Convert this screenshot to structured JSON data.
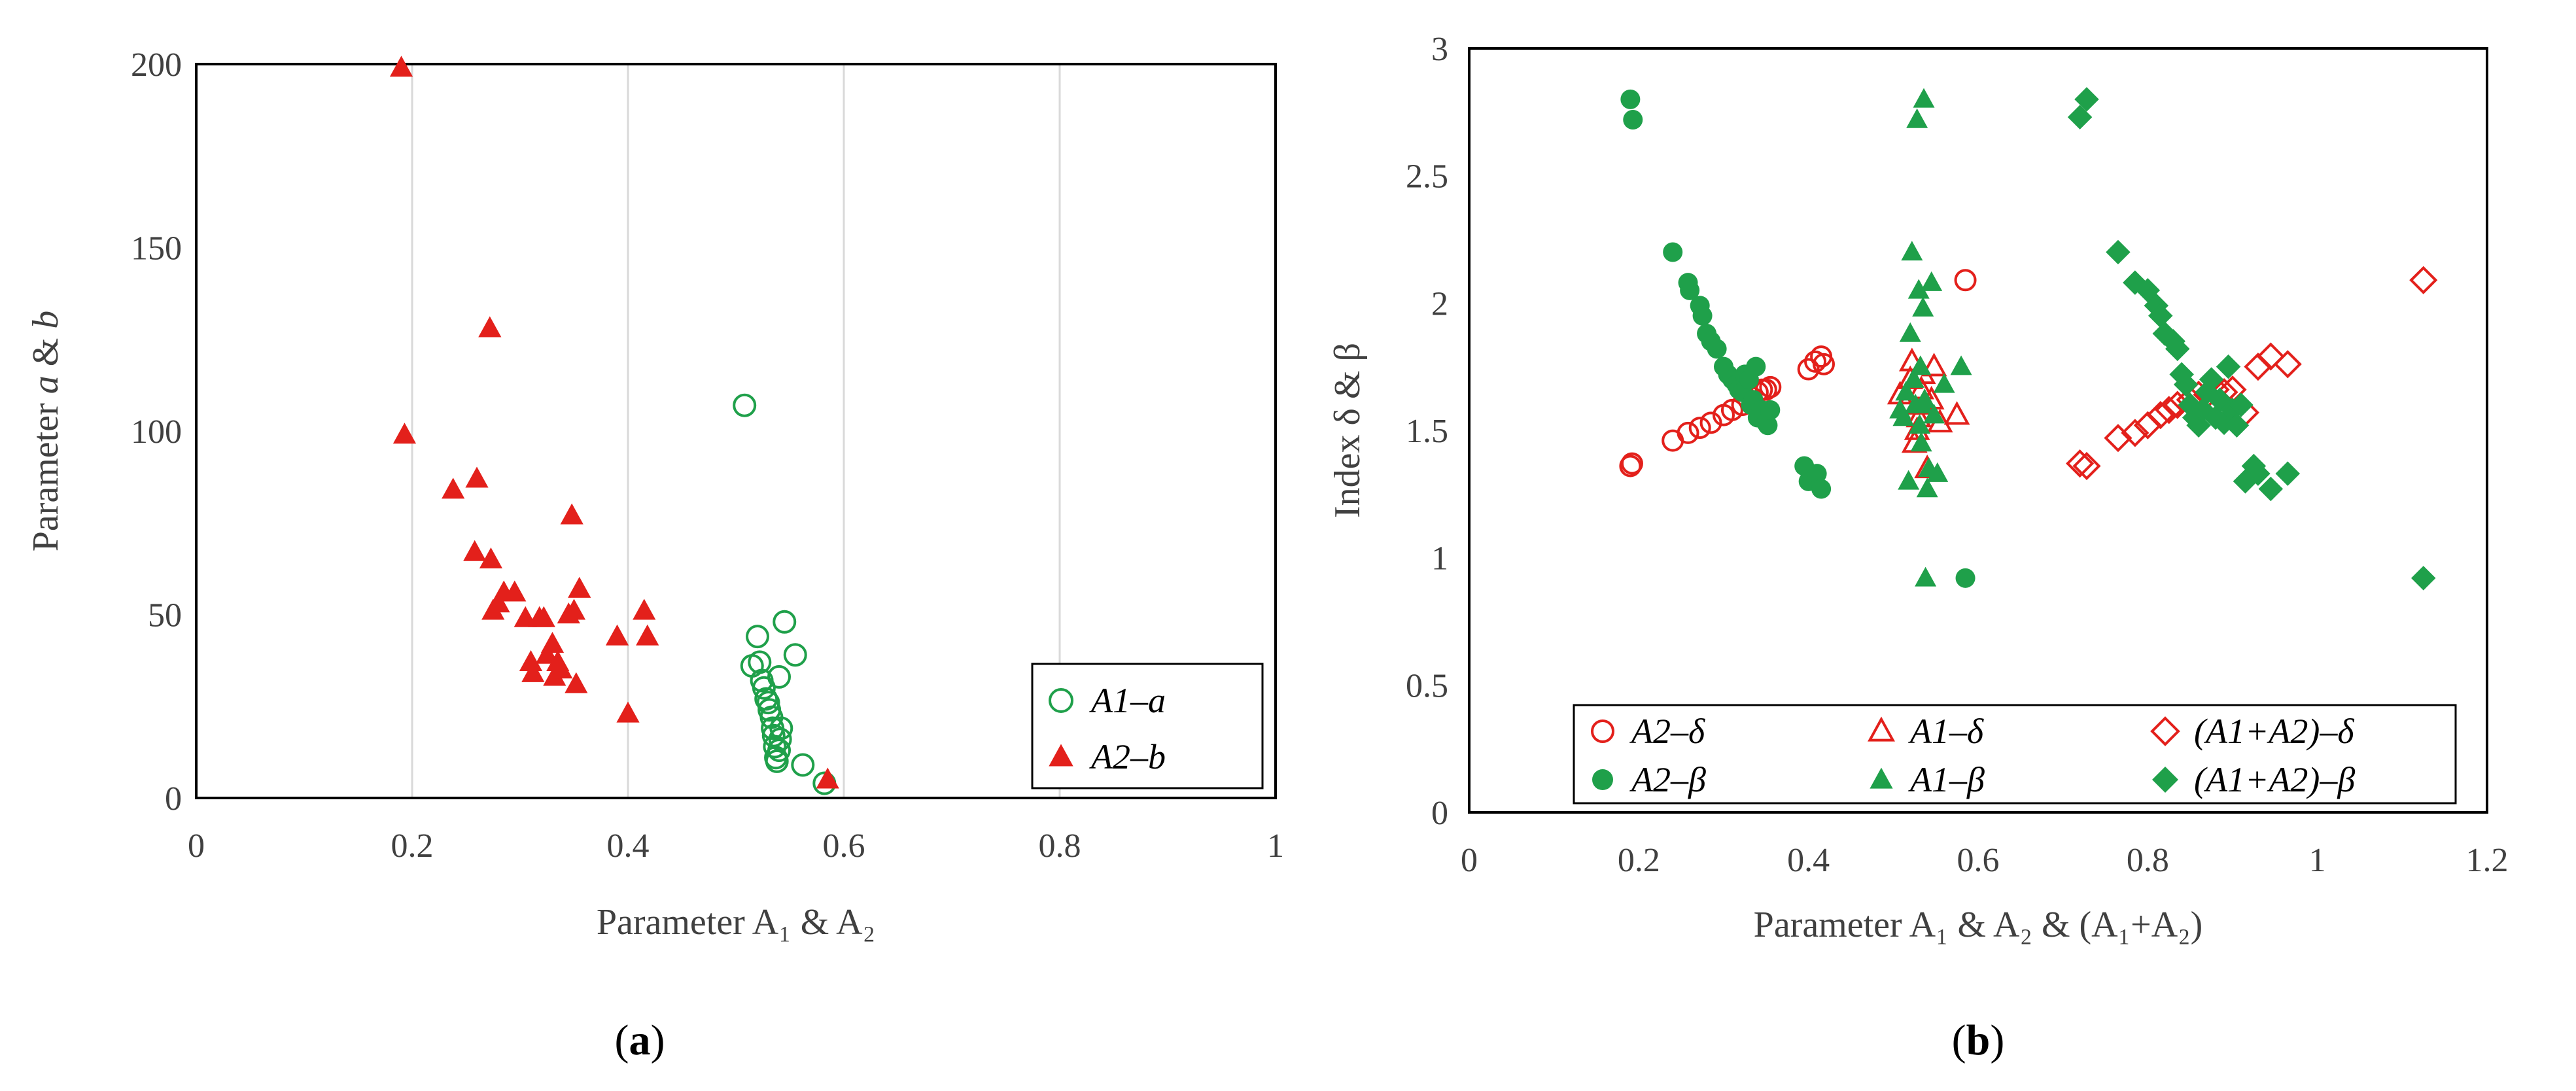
{
  "chart_data": [
    {
      "type": "scatter",
      "panel_label": "(a)",
      "title": "",
      "xlabel": "Parameter A₁ &  A₂",
      "ylabel": "Parameter a & b",
      "xlim": [
        0,
        1
      ],
      "ylim": [
        0,
        200
      ],
      "xticks": [
        0,
        0.2,
        0.4,
        0.6,
        0.8,
        1
      ],
      "xtick_labels": [
        "0",
        "0.2",
        "0.4",
        "0.6",
        "0.8",
        "1"
      ],
      "yticks": [
        0,
        50,
        100,
        150,
        200
      ],
      "ytick_labels": [
        "0",
        "50",
        "100",
        "150",
        "200"
      ],
      "grid": "vertical",
      "legend_position": "bottom-right",
      "series": [
        {
          "name": "A1–a",
          "marker": "circle-open",
          "color": "#1fa04a",
          "points": [
            [
              0.508,
              107
            ],
            [
              0.515,
              36
            ],
            [
              0.52,
              44
            ],
            [
              0.522,
              37
            ],
            [
              0.524,
              32
            ],
            [
              0.526,
              30
            ],
            [
              0.528,
              27
            ],
            [
              0.53,
              26
            ],
            [
              0.531,
              24
            ],
            [
              0.533,
              22
            ],
            [
              0.534,
              19
            ],
            [
              0.535,
              17
            ],
            [
              0.536,
              14
            ],
            [
              0.537,
              11
            ],
            [
              0.538,
              10
            ],
            [
              0.54,
              13
            ],
            [
              0.541,
              16
            ],
            [
              0.542,
              19
            ],
            [
              0.545,
              48
            ],
            [
              0.54,
              33
            ],
            [
              0.555,
              39
            ],
            [
              0.562,
              9
            ],
            [
              0.582,
              4
            ]
          ]
        },
        {
          "name": "A2–b",
          "marker": "triangle-filled",
          "color": "#e3201b",
          "points": [
            [
              0.19,
              199
            ],
            [
              0.193,
              99
            ],
            [
              0.238,
              84
            ],
            [
              0.258,
              67
            ],
            [
              0.26,
              87
            ],
            [
              0.272,
              128
            ],
            [
              0.273,
              65
            ],
            [
              0.275,
              51
            ],
            [
              0.28,
              53
            ],
            [
              0.285,
              56
            ],
            [
              0.295,
              56
            ],
            [
              0.305,
              49
            ],
            [
              0.31,
              37
            ],
            [
              0.312,
              34
            ],
            [
              0.318,
              49
            ],
            [
              0.322,
              49
            ],
            [
              0.325,
              39
            ],
            [
              0.33,
              42
            ],
            [
              0.332,
              33
            ],
            [
              0.335,
              37
            ],
            [
              0.338,
              35
            ],
            [
              0.345,
              50
            ],
            [
              0.348,
              77
            ],
            [
              0.35,
              51
            ],
            [
              0.352,
              31
            ],
            [
              0.355,
              57
            ],
            [
              0.39,
              44
            ],
            [
              0.4,
              23
            ],
            [
              0.415,
              51
            ],
            [
              0.418,
              44
            ],
            [
              0.585,
              5
            ]
          ]
        }
      ]
    },
    {
      "type": "scatter",
      "panel_label": "(b)",
      "title": "",
      "xlabel": "Parameter A₁ & A₂ &  (A₁+A₂)",
      "ylabel": "Index δ & β",
      "xlim": [
        0,
        1.2
      ],
      "ylim": [
        0,
        3
      ],
      "xticks": [
        0,
        0.2,
        0.4,
        0.6,
        0.8,
        1,
        1.2
      ],
      "xtick_labels": [
        "0",
        "0.2",
        "0.4",
        "0.6",
        "0.8",
        "1",
        "1.2"
      ],
      "yticks": [
        0,
        0.5,
        1,
        1.5,
        2,
        2.5,
        3
      ],
      "ytick_labels": [
        "0",
        "0.5",
        "1",
        "1.5",
        "2",
        "2.5",
        "3"
      ],
      "grid": "none",
      "legend_position": "bottom",
      "series": [
        {
          "name": "A2–δ",
          "marker": "circle-open",
          "color": "#e3201b",
          "points": [
            [
              0.19,
              1.36
            ],
            [
              0.192,
              1.37
            ],
            [
              0.24,
              1.46
            ],
            [
              0.258,
              1.49
            ],
            [
              0.272,
              1.51
            ],
            [
              0.285,
              1.53
            ],
            [
              0.3,
              1.56
            ],
            [
              0.31,
              1.58
            ],
            [
              0.322,
              1.6
            ],
            [
              0.333,
              1.63
            ],
            [
              0.34,
              1.65
            ],
            [
              0.345,
              1.66
            ],
            [
              0.35,
              1.66
            ],
            [
              0.355,
              1.67
            ],
            [
              0.4,
              1.74
            ],
            [
              0.408,
              1.77
            ],
            [
              0.415,
              1.79
            ],
            [
              0.418,
              1.76
            ],
            [
              0.585,
              2.09
            ]
          ]
        },
        {
          "name": "A1–δ",
          "marker": "triangle-open",
          "color": "#e3201b",
          "points": [
            [
              0.508,
              1.64
            ],
            [
              0.515,
              1.6
            ],
            [
              0.52,
              1.7
            ],
            [
              0.522,
              1.77
            ],
            [
              0.525,
              1.45
            ],
            [
              0.528,
              1.5
            ],
            [
              0.53,
              1.55
            ],
            [
              0.533,
              1.66
            ],
            [
              0.535,
              1.72
            ],
            [
              0.538,
              1.6
            ],
            [
              0.54,
              1.35
            ],
            [
              0.545,
              1.62
            ],
            [
              0.548,
              1.75
            ],
            [
              0.555,
              1.53
            ],
            [
              0.575,
              1.56
            ]
          ]
        },
        {
          "name": "(A1+A2)–δ",
          "marker": "diamond-open",
          "color": "#e3201b",
          "points": [
            [
              0.72,
              1.37
            ],
            [
              0.728,
              1.36
            ],
            [
              0.765,
              1.47
            ],
            [
              0.785,
              1.49
            ],
            [
              0.8,
              1.52
            ],
            [
              0.815,
              1.56
            ],
            [
              0.825,
              1.58
            ],
            [
              0.835,
              1.6
            ],
            [
              0.85,
              1.62
            ],
            [
              0.86,
              1.64
            ],
            [
              0.87,
              1.64
            ],
            [
              0.88,
              1.66
            ],
            [
              0.89,
              1.65
            ],
            [
              0.9,
              1.66
            ],
            [
              0.915,
              1.57
            ],
            [
              0.93,
              1.75
            ],
            [
              0.945,
              1.79
            ],
            [
              0.965,
              1.76
            ],
            [
              1.125,
              2.09
            ]
          ]
        },
        {
          "name": "A2–β",
          "marker": "circle-filled",
          "color": "#1fa04a",
          "points": [
            [
              0.19,
              2.8
            ],
            [
              0.193,
              2.72
            ],
            [
              0.24,
              2.2
            ],
            [
              0.258,
              2.08
            ],
            [
              0.26,
              2.05
            ],
            [
              0.272,
              1.99
            ],
            [
              0.275,
              1.95
            ],
            [
              0.28,
              1.88
            ],
            [
              0.285,
              1.85
            ],
            [
              0.292,
              1.82
            ],
            [
              0.3,
              1.75
            ],
            [
              0.305,
              1.72
            ],
            [
              0.31,
              1.7
            ],
            [
              0.315,
              1.68
            ],
            [
              0.318,
              1.66
            ],
            [
              0.322,
              1.65
            ],
            [
              0.325,
              1.72
            ],
            [
              0.33,
              1.7
            ],
            [
              0.332,
              1.6
            ],
            [
              0.335,
              1.62
            ],
            [
              0.338,
              1.75
            ],
            [
              0.34,
              1.55
            ],
            [
              0.345,
              1.58
            ],
            [
              0.35,
              1.53
            ],
            [
              0.352,
              1.52
            ],
            [
              0.355,
              1.58
            ],
            [
              0.395,
              1.36
            ],
            [
              0.4,
              1.3
            ],
            [
              0.41,
              1.33
            ],
            [
              0.415,
              1.27
            ],
            [
              0.585,
              0.92
            ]
          ]
        },
        {
          "name": "A1–β",
          "marker": "triangle-filled",
          "color": "#1fa04a",
          "points": [
            [
              0.508,
              1.58
            ],
            [
              0.512,
              1.55
            ],
            [
              0.515,
              1.65
            ],
            [
              0.518,
              1.3
            ],
            [
              0.52,
              1.88
            ],
            [
              0.522,
              2.2
            ],
            [
              0.524,
              1.7
            ],
            [
              0.526,
              1.6
            ],
            [
              0.528,
              2.72
            ],
            [
              0.53,
              2.05
            ],
            [
              0.531,
              1.52
            ],
            [
              0.532,
              1.75
            ],
            [
              0.533,
              1.45
            ],
            [
              0.534,
              1.6
            ],
            [
              0.535,
              1.98
            ],
            [
              0.536,
              2.8
            ],
            [
              0.537,
              1.62
            ],
            [
              0.538,
              0.92
            ],
            [
              0.54,
              1.27
            ],
            [
              0.542,
              1.35
            ],
            [
              0.545,
              2.08
            ],
            [
              0.548,
              1.56
            ],
            [
              0.552,
              1.33
            ],
            [
              0.56,
              1.68
            ],
            [
              0.58,
              1.75
            ]
          ]
        },
        {
          "name": "(A1+A2)–β",
          "marker": "diamond-filled",
          "color": "#1fa04a",
          "points": [
            [
              0.72,
              2.73
            ],
            [
              0.728,
              2.8
            ],
            [
              0.765,
              2.2
            ],
            [
              0.785,
              2.08
            ],
            [
              0.8,
              2.05
            ],
            [
              0.81,
              1.99
            ],
            [
              0.815,
              1.95
            ],
            [
              0.82,
              1.88
            ],
            [
              0.83,
              1.85
            ],
            [
              0.835,
              1.82
            ],
            [
              0.84,
              1.72
            ],
            [
              0.845,
              1.68
            ],
            [
              0.85,
              1.6
            ],
            [
              0.855,
              1.55
            ],
            [
              0.86,
              1.52
            ],
            [
              0.865,
              1.58
            ],
            [
              0.87,
              1.65
            ],
            [
              0.875,
              1.7
            ],
            [
              0.88,
              1.55
            ],
            [
              0.885,
              1.62
            ],
            [
              0.89,
              1.53
            ],
            [
              0.895,
              1.75
            ],
            [
              0.9,
              1.58
            ],
            [
              0.905,
              1.52
            ],
            [
              0.91,
              1.6
            ],
            [
              0.915,
              1.3
            ],
            [
              0.925,
              1.36
            ],
            [
              0.93,
              1.33
            ],
            [
              0.945,
              1.27
            ],
            [
              0.965,
              1.33
            ],
            [
              1.125,
              0.92
            ]
          ]
        }
      ]
    }
  ]
}
